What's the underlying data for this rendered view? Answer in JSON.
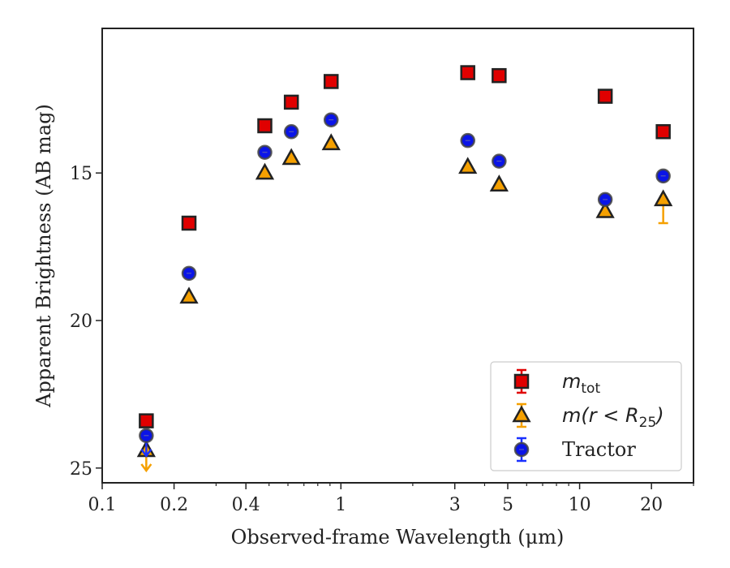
{
  "chart_data": {
    "type": "scatter",
    "xlabel": "Observed-frame Wavelength (μm)",
    "ylabel": "Apparent Brightness (AB mag)",
    "x_scale": "log",
    "xlim": [
      0.1,
      30
    ],
    "ylim": [
      25.5,
      10.1
    ],
    "y_inverted": true,
    "x_ticks": [
      {
        "value": 0.1,
        "label": "0.1"
      },
      {
        "value": 0.2,
        "label": "0.2"
      },
      {
        "value": 0.4,
        "label": "0.4"
      },
      {
        "value": 1,
        "label": "1"
      },
      {
        "value": 3,
        "label": "3"
      },
      {
        "value": 5,
        "label": "5"
      },
      {
        "value": 10,
        "label": "10"
      },
      {
        "value": 20,
        "label": "20"
      }
    ],
    "y_ticks": [
      {
        "value": 15,
        "label": "15"
      },
      {
        "value": 20,
        "label": "20"
      },
      {
        "value": 25,
        "label": "25"
      }
    ],
    "legend_position": "lower right",
    "series": [
      {
        "name": "m_tot",
        "label_main": "m",
        "label_sub": "tot",
        "marker": "square",
        "color": "#e00000",
        "errcolor": "#e00000",
        "points": [
          {
            "x": 0.153,
            "y": 23.4
          },
          {
            "x": 0.231,
            "y": 16.7
          },
          {
            "x": 0.48,
            "y": 13.4
          },
          {
            "x": 0.62,
            "y": 12.6
          },
          {
            "x": 0.91,
            "y": 11.9
          },
          {
            "x": 3.4,
            "y": 11.6
          },
          {
            "x": 4.6,
            "y": 11.7
          },
          {
            "x": 12.8,
            "y": 12.4
          },
          {
            "x": 22.4,
            "y": 13.6
          }
        ]
      },
      {
        "name": "m(r < R25)",
        "label_main": "m(r < R",
        "label_sub": "25",
        "label_end": ")",
        "marker": "triangle",
        "color": "#f5a000",
        "errcolor": "#f5a000",
        "points": [
          {
            "x": 0.153,
            "y": 24.4,
            "upper_limit": true
          },
          {
            "x": 0.231,
            "y": 19.2
          },
          {
            "x": 0.48,
            "y": 15.0
          },
          {
            "x": 0.62,
            "y": 14.5
          },
          {
            "x": 0.91,
            "y": 14.0
          },
          {
            "x": 3.4,
            "y": 14.8
          },
          {
            "x": 4.6,
            "y": 15.4
          },
          {
            "x": 12.8,
            "y": 16.3
          },
          {
            "x": 22.4,
            "y": 15.9,
            "yerr_up": 0.8
          }
        ]
      },
      {
        "name": "Tractor",
        "label_main": "Tractor",
        "marker": "circle",
        "color": "#0a14e8",
        "errcolor": "#1a30ff",
        "points": [
          {
            "x": 0.153,
            "y": 23.9,
            "upper_limit": true
          },
          {
            "x": 0.231,
            "y": 18.4
          },
          {
            "x": 0.48,
            "y": 14.3
          },
          {
            "x": 0.62,
            "y": 13.6
          },
          {
            "x": 0.91,
            "y": 13.2
          },
          {
            "x": 3.4,
            "y": 13.9
          },
          {
            "x": 4.6,
            "y": 14.6
          },
          {
            "x": 12.8,
            "y": 15.9
          },
          {
            "x": 22.4,
            "y": 15.1
          }
        ]
      }
    ]
  }
}
